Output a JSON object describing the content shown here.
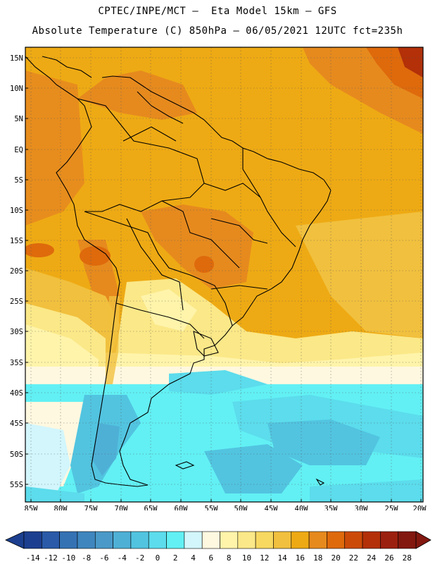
{
  "title_line1": "CPTEC/INPE/MCT –  Eta Model 15km – GFS",
  "title_line2": "Absolute Temperature (C) 850hPa – 06/05/2021 12UTC fct=235h",
  "lat_labels": [
    "15N",
    "10N",
    "5N",
    "EQ",
    "5S",
    "10S",
    "15S",
    "20S",
    "25S",
    "30S",
    "35S",
    "40S",
    "45S",
    "50S",
    "55S"
  ],
  "lon_labels": [
    "85W",
    "80W",
    "75W",
    "70W",
    "65W",
    "60W",
    "55W",
    "50W",
    "45W",
    "40W",
    "35W",
    "30W",
    "25W",
    "20W"
  ],
  "colorbar": {
    "labels": [
      "-14",
      "-12",
      "-10",
      "-8",
      "-6",
      "-4",
      "-2",
      "0",
      "2",
      "4",
      "6",
      "8",
      "10",
      "12",
      "14",
      "16",
      "18",
      "20",
      "22",
      "24",
      "26",
      "28"
    ],
    "colors": [
      "#1c3f8f",
      "#2a5aa8",
      "#3572b4",
      "#3f86bf",
      "#4a99c8",
      "#4fb0d6",
      "#52c4e0",
      "#5cdcec",
      "#62f0f4",
      "#d2f6fc",
      "#fff8e0",
      "#fff4aa",
      "#fbe888",
      "#f7d860",
      "#f1c03e",
      "#eeaa14",
      "#e68a1e",
      "#de6a0c",
      "#cc4a08",
      "#b33008",
      "#9c2010",
      "#821810"
    ]
  }
}
